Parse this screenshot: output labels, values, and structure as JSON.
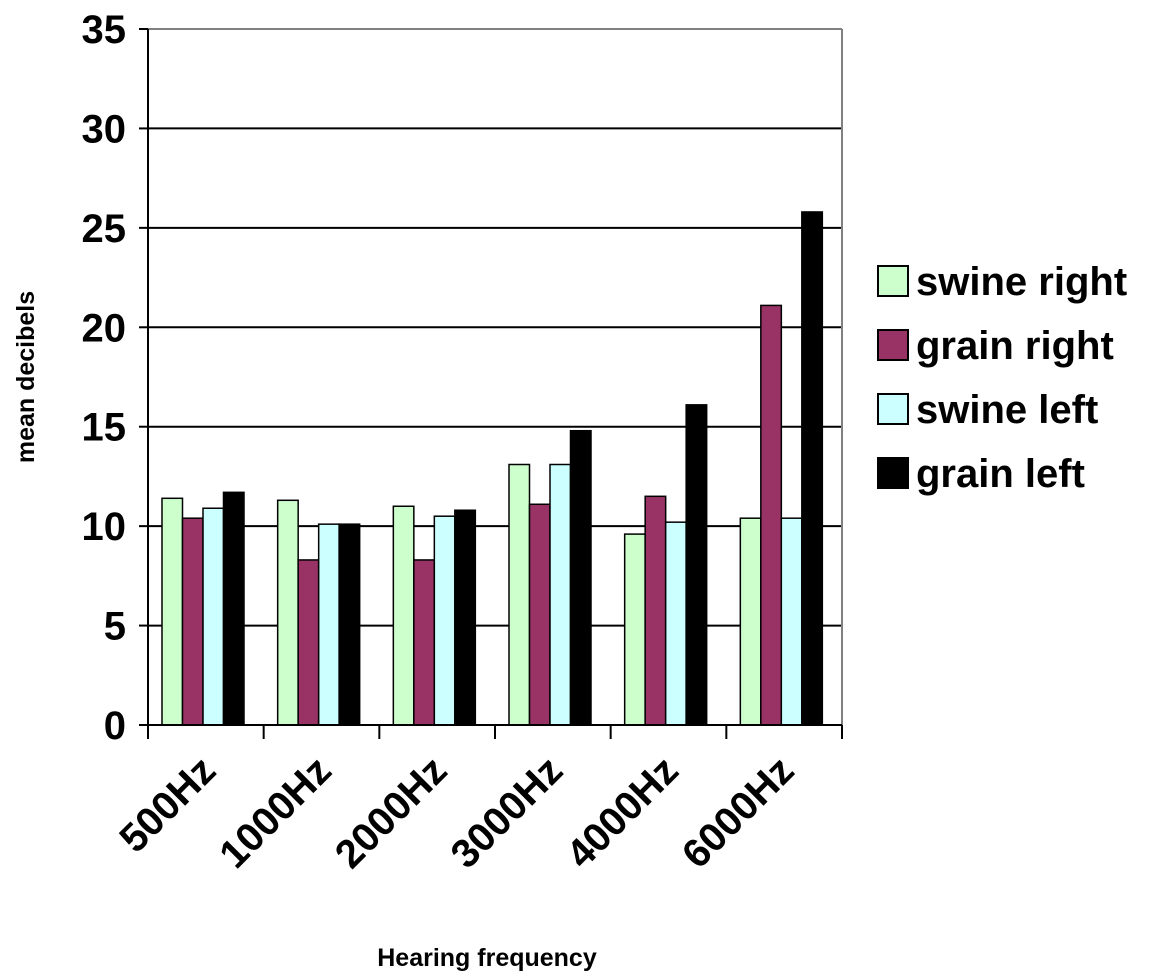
{
  "chart_data": {
    "type": "bar",
    "title": "",
    "xlabel": "Hearing frequency",
    "ylabel": "mean decibels",
    "ylim": [
      0,
      35
    ],
    "yticks": [
      0,
      5,
      10,
      15,
      20,
      25,
      30,
      35
    ],
    "grid": "horizontal",
    "legend_position": "right",
    "categories": [
      "500Hz",
      "1000Hz",
      "2000Hz",
      "3000Hz",
      "4000Hz",
      "6000Hz"
    ],
    "series": [
      {
        "name": "swine right",
        "color": "#ccffcc",
        "values": [
          11.4,
          11.3,
          11.0,
          13.1,
          9.6,
          10.4
        ]
      },
      {
        "name": "grain right",
        "color": "#993366",
        "values": [
          10.4,
          8.3,
          8.3,
          11.1,
          11.5,
          21.1
        ]
      },
      {
        "name": "swine left",
        "color": "#ccffff",
        "values": [
          10.9,
          10.1,
          10.5,
          13.1,
          10.2,
          10.4
        ]
      },
      {
        "name": "grain left",
        "color": "#000000",
        "values": [
          11.7,
          10.1,
          10.8,
          14.8,
          16.1,
          25.8
        ]
      }
    ]
  }
}
